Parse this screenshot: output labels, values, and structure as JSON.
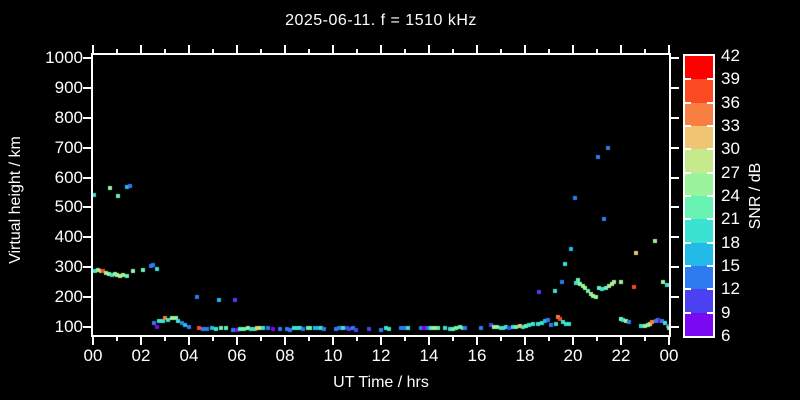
{
  "title": "2025-06-11. f = 1510 kHz",
  "colors": {
    "background": "#000000",
    "text": "#FFFFFF",
    "axis": "#FFFFFF"
  },
  "axes": {
    "x": {
      "label": "UT Time / hrs",
      "tick_labels": [
        "00",
        "02",
        "04",
        "06",
        "08",
        "10",
        "12",
        "14",
        "16",
        "18",
        "20",
        "22",
        "00"
      ],
      "hours_min": 0,
      "hours_max": 24,
      "minor_tick_every_hours": 1,
      "major_tick_every_hours": 2
    },
    "y": {
      "label": "Virtual height / km",
      "tick_labels_ascending": [
        "100",
        "200",
        "300",
        "400",
        "500",
        "600",
        "700",
        "800",
        "900",
        "1000"
      ],
      "km_min": 100,
      "km_max": 1000
    }
  },
  "colorbar": {
    "label": "SNR / dB",
    "tick_labels_top_to_bottom": [
      "42",
      "39",
      "36",
      "33",
      "30",
      "27",
      "24",
      "21",
      "18",
      "15",
      "12",
      "9",
      "6"
    ],
    "segment_colors_top_to_bottom": [
      "#FE0000",
      "#FB4A21",
      "#F97E41",
      "#EFC472",
      "#C6E98B",
      "#9AF49C",
      "#68F2B4",
      "#3BE2D2",
      "#21BAE9",
      "#2E7BF0",
      "#4B41F3",
      "#7A09F1"
    ]
  },
  "chart_data": {
    "type": "scatter",
    "title": "2025-06-11. f = 1510 kHz",
    "xlabel": "UT Time / hrs",
    "ylabel": "Virtual height / km",
    "xlim_hours": [
      0,
      24
    ],
    "ylim_km": [
      73,
      1010
    ],
    "grid": false,
    "legend_position": "right-colorbar",
    "colorbar": {
      "label": "SNR / dB",
      "min_db": 6,
      "max_db": 42,
      "step_db": 3
    },
    "marker_px": 4,
    "points_t_h_snr": [
      [
        0.05,
        540,
        19
      ],
      [
        0.08,
        287,
        19
      ],
      [
        0.22,
        290,
        25
      ],
      [
        0.33,
        289,
        31
      ],
      [
        0.43,
        287,
        37
      ],
      [
        0.55,
        281,
        25
      ],
      [
        0.68,
        277,
        25
      ],
      [
        0.7,
        565,
        25
      ],
      [
        0.78,
        274,
        19
      ],
      [
        0.9,
        276,
        25
      ],
      [
        1.0,
        274,
        25
      ],
      [
        1.05,
        538,
        22
      ],
      [
        1.13,
        272,
        28
      ],
      [
        1.27,
        274,
        25
      ],
      [
        1.4,
        568,
        16
      ],
      [
        1.42,
        272,
        22
      ],
      [
        1.53,
        572,
        13
      ],
      [
        1.65,
        287,
        25
      ],
      [
        2.08,
        290,
        22
      ],
      [
        2.42,
        304,
        13
      ],
      [
        2.52,
        307,
        13
      ],
      [
        2.55,
        113,
        13
      ],
      [
        2.65,
        101,
        7
      ],
      [
        2.68,
        294,
        19
      ],
      [
        2.76,
        119,
        19
      ],
      [
        2.9,
        121,
        19
      ],
      [
        3.02,
        130,
        34
      ],
      [
        3.14,
        122,
        19
      ],
      [
        3.3,
        130,
        25
      ],
      [
        3.44,
        131,
        25
      ],
      [
        3.56,
        121,
        19
      ],
      [
        3.72,
        113,
        13
      ],
      [
        3.84,
        107,
        16
      ],
      [
        3.98,
        100,
        13
      ],
      [
        4.35,
        199,
        13
      ],
      [
        4.4,
        96,
        37
      ],
      [
        4.58,
        93,
        13
      ],
      [
        4.73,
        92,
        13
      ],
      [
        4.94,
        95,
        16
      ],
      [
        5.12,
        94,
        19
      ],
      [
        5.25,
        191,
        16
      ],
      [
        5.33,
        95,
        22
      ],
      [
        5.53,
        97,
        22
      ],
      [
        5.83,
        91,
        13
      ],
      [
        5.9,
        190,
        10
      ],
      [
        6.0,
        90,
        7
      ],
      [
        6.14,
        93,
        22
      ],
      [
        6.3,
        94,
        22
      ],
      [
        6.45,
        95,
        25
      ],
      [
        6.6,
        93,
        19
      ],
      [
        6.73,
        93,
        19
      ],
      [
        6.84,
        97,
        31
      ],
      [
        6.95,
        97,
        28
      ],
      [
        7.1,
        97,
        19
      ],
      [
        7.3,
        95,
        13
      ],
      [
        7.5,
        93,
        7
      ],
      [
        7.8,
        93,
        13
      ],
      [
        8.08,
        92,
        13
      ],
      [
        8.2,
        91,
        13
      ],
      [
        8.37,
        95,
        19
      ],
      [
        8.48,
        95,
        19
      ],
      [
        8.62,
        95,
        19
      ],
      [
        8.76,
        94,
        13
      ],
      [
        8.95,
        98,
        22
      ],
      [
        9.06,
        98,
        22
      ],
      [
        9.24,
        97,
        16
      ],
      [
        9.36,
        97,
        16
      ],
      [
        9.5,
        95,
        19
      ],
      [
        9.62,
        94,
        13
      ],
      [
        10.12,
        94,
        13
      ],
      [
        10.24,
        95,
        13
      ],
      [
        10.4,
        97,
        19
      ],
      [
        10.58,
        95,
        10
      ],
      [
        10.68,
        93,
        10
      ],
      [
        10.82,
        97,
        13
      ],
      [
        10.95,
        91,
        10
      ],
      [
        11.5,
        93,
        10
      ],
      [
        11.98,
        90,
        13
      ],
      [
        12.2,
        95,
        19
      ],
      [
        12.32,
        94,
        19
      ],
      [
        12.85,
        95,
        13
      ],
      [
        12.97,
        95,
        13
      ],
      [
        13.12,
        95,
        19
      ],
      [
        13.68,
        97,
        13
      ],
      [
        13.8,
        96,
        7
      ],
      [
        13.95,
        95,
        13
      ],
      [
        14.1,
        98,
        22
      ],
      [
        14.22,
        97,
        25
      ],
      [
        14.36,
        95,
        22
      ],
      [
        14.65,
        95,
        19
      ],
      [
        14.88,
        93,
        19
      ],
      [
        15.0,
        92,
        22
      ],
      [
        15.12,
        95,
        22
      ],
      [
        15.28,
        100,
        22
      ],
      [
        15.4,
        98,
        22
      ],
      [
        15.52,
        95,
        13
      ],
      [
        16.15,
        97,
        13
      ],
      [
        16.6,
        107,
        10
      ],
      [
        16.72,
        100,
        25
      ],
      [
        16.85,
        99,
        25
      ],
      [
        16.98,
        97,
        19
      ],
      [
        17.1,
        96,
        19
      ],
      [
        17.2,
        100,
        19
      ],
      [
        17.32,
        95,
        10
      ],
      [
        17.5,
        99,
        19
      ],
      [
        17.62,
        101,
        22
      ],
      [
        17.78,
        102,
        31
      ],
      [
        17.9,
        100,
        19
      ],
      [
        18.05,
        104,
        22
      ],
      [
        18.18,
        107,
        19
      ],
      [
        18.35,
        110,
        19
      ],
      [
        18.55,
        110,
        19
      ],
      [
        18.6,
        218,
        10
      ],
      [
        18.7,
        112,
        19
      ],
      [
        18.82,
        119,
        16
      ],
      [
        18.95,
        122,
        13
      ],
      [
        19.1,
        107,
        13
      ],
      [
        19.25,
        220,
        19
      ],
      [
        19.28,
        110,
        19
      ],
      [
        19.38,
        134,
        34
      ],
      [
        19.46,
        128,
        37
      ],
      [
        19.55,
        250,
        13
      ],
      [
        19.58,
        117,
        19
      ],
      [
        19.68,
        312,
        19
      ],
      [
        19.72,
        111,
        19
      ],
      [
        19.85,
        110,
        19
      ],
      [
        19.9,
        360,
        16
      ],
      [
        20.08,
        533,
        13
      ],
      [
        20.12,
        247,
        19
      ],
      [
        20.2,
        256,
        22
      ],
      [
        20.3,
        243,
        25
      ],
      [
        20.42,
        237,
        25
      ],
      [
        20.52,
        230,
        25
      ],
      [
        20.63,
        221,
        22
      ],
      [
        20.73,
        212,
        25
      ],
      [
        20.85,
        204,
        25
      ],
      [
        20.95,
        200,
        25
      ],
      [
        21.05,
        668,
        13
      ],
      [
        21.1,
        232,
        22
      ],
      [
        21.2,
        227,
        19
      ],
      [
        21.3,
        460,
        13
      ],
      [
        21.36,
        230,
        22
      ],
      [
        21.45,
        698,
        13
      ],
      [
        21.52,
        237,
        25
      ],
      [
        21.62,
        245,
        28
      ],
      [
        21.72,
        251,
        25
      ],
      [
        21.98,
        250,
        25
      ],
      [
        22.0,
        127,
        25
      ],
      [
        22.1,
        123,
        19
      ],
      [
        22.2,
        121,
        25
      ],
      [
        22.32,
        117,
        13
      ],
      [
        22.55,
        234,
        37
      ],
      [
        22.62,
        348,
        31
      ],
      [
        22.82,
        103,
        19
      ],
      [
        22.92,
        102,
        19
      ],
      [
        23.02,
        105,
        25
      ],
      [
        23.12,
        107,
        25
      ],
      [
        23.22,
        110,
        28
      ],
      [
        23.3,
        117,
        34
      ],
      [
        23.42,
        388,
        25
      ],
      [
        23.46,
        121,
        13
      ],
      [
        23.56,
        123,
        13
      ],
      [
        23.64,
        121,
        7
      ],
      [
        23.7,
        120,
        13
      ],
      [
        23.75,
        250,
        25
      ],
      [
        23.85,
        113,
        19
      ],
      [
        23.9,
        240,
        19
      ],
      [
        23.95,
        103,
        13
      ],
      [
        24.0,
        97,
        25
      ]
    ]
  }
}
